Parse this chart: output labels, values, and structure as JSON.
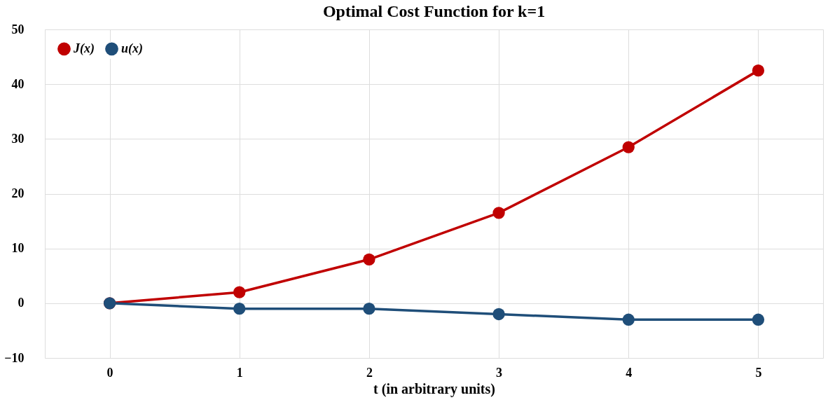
{
  "chart_data": {
    "type": "line",
    "title": "Optimal Cost Function for k=1",
    "xlabel": "t (in arbitrary units)",
    "categories": [
      "0",
      "1",
      "2",
      "3",
      "4",
      "5"
    ],
    "series": [
      {
        "name": "J(x)",
        "color": "#c00000",
        "values": [
          0,
          2,
          8,
          16.5,
          28.5,
          42.5
        ]
      },
      {
        "name": "u(x)",
        "color": "#1f4e79",
        "values": [
          0,
          -1,
          -1,
          -2,
          -3,
          -3
        ]
      }
    ],
    "ylim": [
      -10,
      50
    ],
    "yticks": [
      -10,
      0,
      10,
      20,
      30,
      40,
      50
    ],
    "grid": true,
    "legend": "top left",
    "marker": "circle",
    "line_style": "solid"
  }
}
